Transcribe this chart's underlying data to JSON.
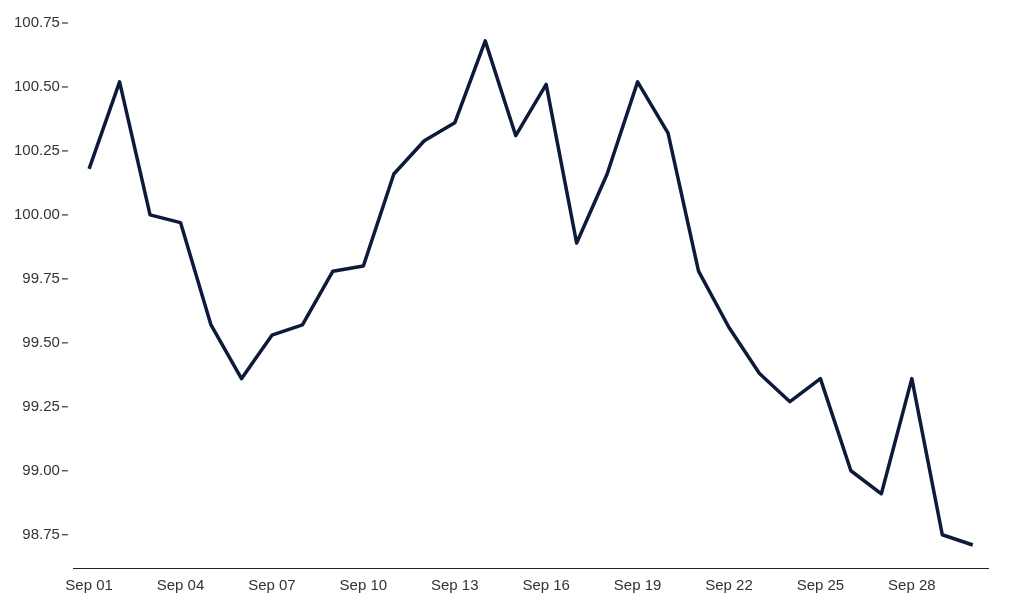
{
  "chart_data": {
    "type": "line",
    "categories": [
      "Sep 01",
      null,
      null,
      "Sep 04",
      null,
      null,
      "Sep 07",
      null,
      null,
      "Sep 10",
      null,
      null,
      "Sep 13",
      null,
      null,
      "Sep 16",
      null,
      null,
      "Sep 19",
      null,
      null,
      "Sep 22",
      null,
      null,
      "Sep 25",
      null,
      null,
      "Sep 28",
      null,
      null
    ],
    "series": [
      {
        "color": "#0d1a3a",
        "values": [
          100.18,
          100.52,
          100.0,
          99.97,
          99.57,
          99.36,
          99.53,
          99.57,
          99.78,
          99.8,
          100.16,
          100.29,
          100.36,
          100.68,
          100.31,
          100.51,
          99.89,
          100.16,
          100.52,
          100.32,
          99.78,
          99.56,
          99.38,
          99.27,
          99.36,
          99.0,
          98.91,
          99.36,
          98.75,
          98.71
        ]
      }
    ],
    "ylim": [
      98.62,
      100.75
    ],
    "yticks": [
      {
        "value": 98.75,
        "label": "98.75"
      },
      {
        "value": 99,
        "label": "99.00"
      },
      {
        "value": 99.25,
        "label": "99.25"
      },
      {
        "value": 99.5,
        "label": "99.50"
      },
      {
        "value": 99.75,
        "label": "99.75"
      },
      {
        "value": 100,
        "label": "100.00"
      },
      {
        "value": 100.25,
        "label": "100.25"
      },
      {
        "value": 100.5,
        "label": "100.50"
      },
      {
        "value": 100.75,
        "label": "100.75"
      }
    ],
    "grid": false,
    "legend": false,
    "marker": "none",
    "line_style": "solid"
  }
}
